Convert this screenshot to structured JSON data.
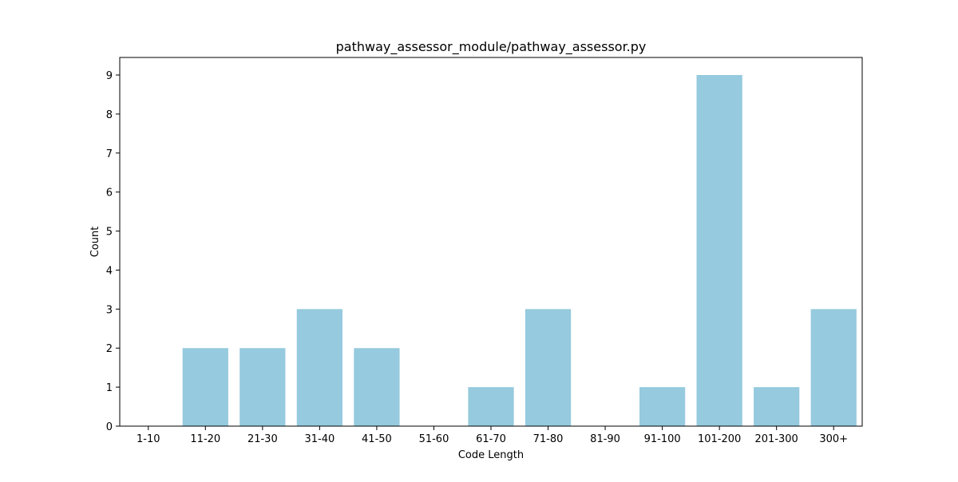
{
  "chart_data": {
    "type": "bar",
    "title": "pathway_assessor_module/pathway_assessor.py",
    "xlabel": "Code Length",
    "ylabel": "Count",
    "categories": [
      "1-10",
      "11-20",
      "21-30",
      "31-40",
      "41-50",
      "51-60",
      "61-70",
      "71-80",
      "81-90",
      "91-100",
      "101-200",
      "201-300",
      "300+"
    ],
    "values": [
      0,
      2,
      2,
      3,
      2,
      0,
      1,
      3,
      0,
      1,
      9,
      1,
      3
    ],
    "ylim": [
      0,
      9.45
    ],
    "yticks": [
      0,
      1,
      2,
      3,
      4,
      5,
      6,
      7,
      8,
      9
    ],
    "bar_color": "#96cade",
    "grid": false,
    "legend": "none"
  }
}
